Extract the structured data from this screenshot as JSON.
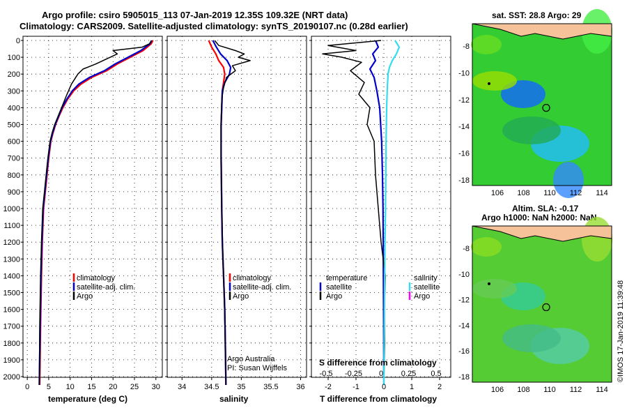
{
  "title_line1": "Argo profile: csiro 5905015_113 07-Jan-2019 12.35S 109.32E (NRT data)",
  "title_line2": "Climatology: CARS2009. Satellite-adjusted climatology: synTS_20190107.nc (0.28d earlier)",
  "colors": {
    "climatology": "#ff0000",
    "satellite": "#0000cc",
    "argo": "#000000",
    "sat_salinity": "#33ddee",
    "argo_salinity": "#ff00ff",
    "land": "#f5c29a"
  },
  "depth_ticks": [
    "0",
    "100",
    "200",
    "300",
    "400",
    "500",
    "600",
    "700",
    "800",
    "900",
    "1000",
    "1100",
    "1200",
    "1300",
    "1400",
    "1500",
    "1600",
    "1700",
    "1800",
    "1900",
    "2000"
  ],
  "panel_temp": {
    "xlabel": "temperature (deg C)",
    "xticks": [
      "0",
      "5",
      "10",
      "15",
      "20",
      "25",
      "30"
    ],
    "legend": [
      "climatology",
      "satellite-adj. clim.",
      "Argo"
    ]
  },
  "panel_sal": {
    "xlabel": "salinity",
    "xticks": [
      "34",
      "34.5",
      "35",
      "35.5",
      "36"
    ],
    "legend": [
      "climatology",
      "satellite-adj. clim.",
      "Argo"
    ],
    "credit1": "Argo Australia",
    "credit2": "PI: Susan Wijffels"
  },
  "panel_diff": {
    "xlabel": "T difference from climatology",
    "xticks": [
      "-2",
      "-1",
      "0",
      "1",
      "2"
    ],
    "s_label": "S difference from climatology",
    "s_ticks": [
      "-0.5",
      "-0.25",
      "0",
      "0.25",
      "0.5"
    ],
    "legend_t_head": "temperature",
    "legend_s_head": "salinity",
    "legend_t": [
      "satellite",
      "Argo"
    ],
    "legend_s": [
      "satellite",
      "Argo"
    ]
  },
  "map_sst": {
    "title": "sat. SST: 28.8 Argo: 29",
    "yticks": [
      "-8",
      "-10",
      "-12",
      "-14",
      "-16",
      "-18"
    ],
    "xticks": [
      "106",
      "108",
      "110",
      "112",
      "114"
    ]
  },
  "map_sla": {
    "title1": "Altim. SLA: -0.17",
    "title2": "Argo h1000: NaN h2000: NaN",
    "yticks": [
      "-8",
      "-10",
      "-12",
      "-14",
      "-16",
      "-18"
    ],
    "xticks": [
      "106",
      "108",
      "110",
      "112",
      "114"
    ]
  },
  "stamp": "©IMOS 17-Jan-2019 11:39:48",
  "chart_data": [
    {
      "type": "line",
      "xlabel": "temperature (deg C)",
      "ylabel": "",
      "xlim": [
        -1,
        31.5
      ],
      "ylim": [
        2080,
        0
      ],
      "series": [
        {
          "name": "climatology",
          "x": [
            29.3,
            28.9,
            27,
            24,
            21,
            18.5,
            15,
            12.5,
            10.8,
            9.4,
            8.3,
            7.4,
            6.6,
            6,
            5.5,
            5,
            4.6,
            4.2,
            3.8,
            3.5,
            3.3,
            3.1,
            2.9
          ],
          "y": [
            0,
            20,
            60,
            100,
            140,
            180,
            220,
            260,
            300,
            350,
            400,
            450,
            500,
            550,
            600,
            700,
            800,
            900,
            1000,
            1200,
            1400,
            1700,
            2050
          ]
        },
        {
          "name": "satellite-adj. clim.",
          "x": [
            29,
            28.6,
            26.5,
            23.5,
            20.5,
            18,
            14.5,
            12,
            10.5,
            9.2,
            8.1,
            7.3,
            6.5,
            5.9,
            5.4,
            4.9,
            4.5,
            4.1,
            3.7,
            3.4,
            3.2,
            3,
            2.8
          ],
          "y": [
            0,
            20,
            60,
            100,
            140,
            180,
            220,
            260,
            300,
            350,
            400,
            450,
            500,
            550,
            600,
            700,
            800,
            900,
            1000,
            1200,
            1400,
            1700,
            2050
          ]
        },
        {
          "name": "Argo",
          "x": [
            29,
            28.5,
            26.8,
            20,
            21,
            16,
            13,
            11.8,
            10.3,
            9.1,
            8,
            7.2,
            6.4,
            5.8,
            5.3,
            4.8,
            4.4,
            4,
            3.6,
            3.3,
            3.1,
            2.9,
            2.8
          ],
          "y": [
            0,
            20,
            40,
            60,
            80,
            140,
            170,
            200,
            260,
            330,
            400,
            450,
            500,
            550,
            600,
            700,
            800,
            900,
            1000,
            1200,
            1400,
            1700,
            2050
          ]
        }
      ]
    },
    {
      "type": "line",
      "xlabel": "salinity",
      "ylabel": "",
      "xlim": [
        33.75,
        36.1
      ],
      "ylim": [
        2080,
        0
      ],
      "series": [
        {
          "name": "climatology",
          "x": [
            34.45,
            34.5,
            34.57,
            34.62,
            34.7,
            34.72,
            34.7,
            34.68,
            34.67,
            34.66,
            34.66,
            34.67,
            34.68,
            34.7,
            34.72,
            34.73,
            34.74
          ],
          "y": [
            0,
            40,
            80,
            120,
            160,
            200,
            250,
            300,
            400,
            500,
            700,
            1000,
            1200,
            1400,
            1600,
            1800,
            2050
          ]
        },
        {
          "name": "satellite-adj. clim.",
          "x": [
            34.52,
            34.58,
            34.65,
            34.76,
            34.82,
            34.8,
            34.72,
            34.68,
            34.67,
            34.66,
            34.66,
            34.67,
            34.68,
            34.7,
            34.72,
            34.73,
            34.74
          ],
          "y": [
            0,
            40,
            80,
            120,
            160,
            200,
            250,
            300,
            400,
            500,
            700,
            1000,
            1200,
            1400,
            1600,
            1800,
            2050
          ]
        },
        {
          "name": "Argo",
          "x": [
            34.55,
            34.62,
            34.9,
            35.05,
            34.95,
            35.15,
            34.85,
            34.9,
            34.75,
            34.7,
            34.67,
            34.66,
            34.66,
            34.67,
            34.69,
            34.71,
            34.73,
            34.74
          ],
          "y": [
            0,
            30,
            60,
            80,
            100,
            120,
            150,
            180,
            220,
            280,
            350,
            500,
            700,
            1000,
            1300,
            1500,
            1800,
            2050
          ]
        }
      ]
    },
    {
      "type": "line",
      "xlabel": "T difference from climatology",
      "ylabel": "",
      "xlim": [
        -2.6,
        2.4
      ],
      "ylim": [
        2080,
        0
      ],
      "series": [
        {
          "name": "satellite (T)",
          "x": [
            -0.3,
            -0.2,
            -0.4,
            -0.3,
            -0.5,
            -0.35,
            -0.25,
            -0.15,
            -0.08,
            -0.05,
            -0.03,
            -0.02,
            -0.01,
            0
          ],
          "y": [
            0,
            40,
            80,
            120,
            170,
            220,
            300,
            400,
            600,
            800,
            1000,
            1300,
            1600,
            2050
          ]
        },
        {
          "name": "Argo (T)",
          "x": [
            -0.1,
            -2,
            -1,
            -2.2,
            -1.5,
            -0.8,
            -1.2,
            -0.7,
            -0.9,
            -0.5,
            -0.6,
            -0.35,
            -0.3,
            -0.2,
            -0.1,
            0.05,
            0.02,
            0.03,
            0
          ],
          "y": [
            0,
            30,
            60,
            80,
            100,
            130,
            180,
            250,
            320,
            400,
            500,
            600,
            800,
            1000,
            1200,
            1400,
            1600,
            1800,
            2050
          ]
        },
        {
          "name": "satellite (S)",
          "x": [
            0.4,
            0.55,
            0.45,
            0.3,
            0.2,
            0.15,
            0.12,
            0.1,
            0.08,
            0.07,
            0.06,
            0.04,
            0.03,
            0.02,
            0.01,
            0
          ],
          "y": [
            0,
            40,
            80,
            120,
            160,
            200,
            300,
            400,
            600,
            800,
            1000,
            1200,
            1400,
            1600,
            1800,
            2050
          ]
        }
      ]
    }
  ]
}
